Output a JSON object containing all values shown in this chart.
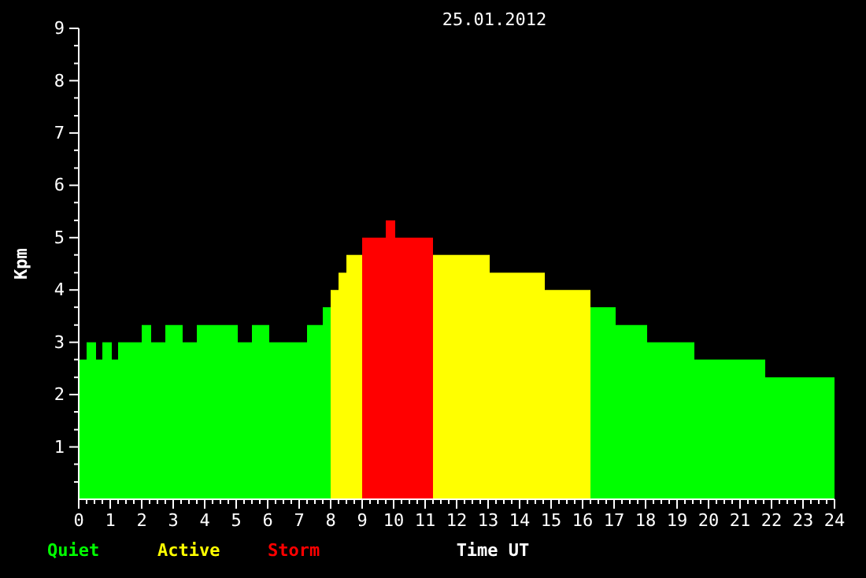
{
  "chart_data": {
    "type": "histogram",
    "title": "25.01.2012",
    "xlabel": "Time UT",
    "ylabel": "Kpm",
    "bins": [
      0,
      0.25,
      0.55,
      0.75,
      1.05,
      1.25,
      2.0,
      2.3,
      2.75,
      3.3,
      3.75,
      5.05,
      5.5,
      6.05,
      7.25,
      7.75,
      8.0,
      8.25,
      8.5,
      9.0,
      9.75,
      10.05,
      11.25,
      13.05,
      14.8,
      16.25,
      17.05,
      18.05,
      19.55,
      21.8,
      24
    ],
    "series": [
      {
        "name": "Quiet",
        "color": "#00ff00",
        "values": [
          2.67,
          3,
          2.67,
          3,
          2.67,
          3,
          3.33,
          3,
          3.33,
          3,
          3.33,
          3,
          3.33,
          3,
          3.33,
          3.67,
          null,
          null,
          null,
          null,
          null,
          null,
          null,
          null,
          null,
          3.67,
          3.33,
          3,
          2.67,
          2.33
        ]
      },
      {
        "name": "Active",
        "color": "#ffff00",
        "values": [
          null,
          null,
          null,
          null,
          null,
          null,
          null,
          null,
          null,
          null,
          null,
          null,
          null,
          null,
          null,
          null,
          4,
          4.33,
          4.67,
          null,
          null,
          null,
          4.67,
          4.33,
          4,
          null,
          null,
          null,
          null,
          null
        ]
      },
      {
        "name": "Storm",
        "color": "#ff0000",
        "values": [
          null,
          null,
          null,
          null,
          null,
          null,
          null,
          null,
          null,
          null,
          null,
          null,
          null,
          null,
          null,
          null,
          null,
          null,
          null,
          5,
          5.33,
          5,
          null,
          null,
          null,
          null,
          null,
          null,
          null,
          null
        ]
      }
    ],
    "legend": "bottom left",
    "grid": false,
    "xlim": [
      0,
      24
    ],
    "xticks": [
      0,
      {
        "value": 0.25,
        "label": null
      },
      {
        "value": 0.5,
        "label": null
      },
      {
        "value": 0.75,
        "label": null
      },
      1,
      {
        "value": 1.25,
        "label": null
      },
      {
        "value": 1.5,
        "label": null
      },
      {
        "value": 1.75,
        "label": null
      },
      2,
      {
        "value": 2.25,
        "label": null
      },
      {
        "value": 2.5,
        "label": null
      },
      {
        "value": 2.75,
        "label": null
      },
      3,
      {
        "value": 3.25,
        "label": null
      },
      {
        "value": 3.5,
        "label": null
      },
      {
        "value": 3.75,
        "label": null
      },
      4,
      {
        "value": 4.25,
        "label": null
      },
      {
        "value": 4.5,
        "label": null
      },
      {
        "value": 4.75,
        "label": null
      },
      5,
      {
        "value": 5.25,
        "label": null
      },
      {
        "value": 5.5,
        "label": null
      },
      {
        "value": 5.75,
        "label": null
      },
      6,
      {
        "value": 6.25,
        "label": null
      },
      {
        "value": 6.5,
        "label": null
      },
      {
        "value": 6.75,
        "label": null
      },
      7,
      {
        "value": 7.25,
        "label": null
      },
      {
        "value": 7.5,
        "label": null
      },
      {
        "value": 7.75,
        "label": null
      },
      8,
      {
        "value": 8.25,
        "label": null
      },
      {
        "value": 8.5,
        "label": null
      },
      {
        "value": 8.75,
        "label": null
      },
      9,
      {
        "value": 9.25,
        "label": null
      },
      {
        "value": 9.5,
        "label": null
      },
      {
        "value": 9.75,
        "label": null
      },
      10,
      {
        "value": 10.25,
        "label": null
      },
      {
        "value": 10.5,
        "label": null
      },
      {
        "value": 10.75,
        "label": null
      },
      11,
      {
        "value": 11.25,
        "label": null
      },
      {
        "value": 11.5,
        "label": null
      },
      {
        "value": 11.75,
        "label": null
      },
      12,
      {
        "value": 12.25,
        "label": null
      },
      {
        "value": 12.5,
        "label": null
      },
      {
        "value": 12.75,
        "label": null
      },
      13,
      {
        "value": 13.25,
        "label": null
      },
      {
        "value": 13.5,
        "label": null
      },
      {
        "value": 13.75,
        "label": null
      },
      14,
      {
        "value": 14.25,
        "label": null
      },
      {
        "value": 14.5,
        "label": null
      },
      {
        "value": 14.75,
        "label": null
      },
      15,
      {
        "value": 15.25,
        "label": null
      },
      {
        "value": 15.5,
        "label": null
      },
      {
        "value": 15.75,
        "label": null
      },
      16,
      {
        "value": 16.25,
        "label": null
      },
      {
        "value": 16.5,
        "label": null
      },
      {
        "value": 16.75,
        "label": null
      },
      17,
      {
        "value": 17.25,
        "label": null
      },
      {
        "value": 17.5,
        "label": null
      },
      {
        "value": 17.75,
        "label": null
      },
      18,
      {
        "value": 18.25,
        "label": null
      },
      {
        "value": 18.5,
        "label": null
      },
      {
        "value": 18.75,
        "label": null
      },
      19,
      {
        "value": 19.25,
        "label": null
      },
      {
        "value": 19.5,
        "label": null
      },
      {
        "value": 19.75,
        "label": null
      },
      20,
      {
        "value": 20.25,
        "label": null
      },
      {
        "value": 20.5,
        "label": null
      },
      {
        "value": 20.75,
        "label": null
      },
      21,
      {
        "value": 21.25,
        "label": null
      },
      {
        "value": 21.5,
        "label": null
      },
      {
        "value": 21.75,
        "label": null
      },
      22,
      {
        "value": 22.25,
        "label": null
      },
      {
        "value": 22.5,
        "label": null
      },
      {
        "value": 22.75,
        "label": null
      },
      23,
      {
        "value": 23.25,
        "label": null
      },
      {
        "value": 23.5,
        "label": null
      },
      {
        "value": 23.75,
        "label": null
      },
      24
    ],
    "ylim": [
      0,
      9
    ],
    "yticks": [
      {
        "value": 0.33,
        "label": null
      },
      {
        "value": 0.67,
        "label": null
      },
      1,
      {
        "value": 1.33,
        "label": null
      },
      {
        "value": 1.67,
        "label": null
      },
      2,
      {
        "value": 2.33,
        "label": null
      },
      {
        "value": 2.67,
        "label": null
      },
      3,
      {
        "value": 3.33,
        "label": null
      },
      {
        "value": 3.67,
        "label": null
      },
      4,
      {
        "value": 4.33,
        "label": null
      },
      {
        "value": 4.67,
        "label": null
      },
      5,
      {
        "value": 5.33,
        "label": null
      },
      {
        "value": 5.67,
        "label": null
      },
      6,
      {
        "value": 6.33,
        "label": null
      },
      {
        "value": 6.67,
        "label": null
      },
      7,
      {
        "value": 7.33,
        "label": null
      },
      {
        "value": 7.67,
        "label": null
      },
      8,
      {
        "value": 8.33,
        "label": null
      },
      {
        "value": 8.67,
        "label": null
      },
      9
    ]
  }
}
